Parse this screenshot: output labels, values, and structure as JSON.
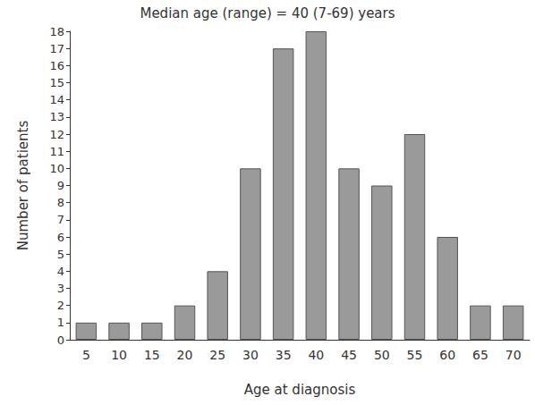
{
  "chart_data": {
    "type": "bar",
    "title": "Median age (range) = 40 (7-69) years",
    "x_label": "Age at diagnosis",
    "y_label": "Number of patients",
    "categories": [
      "5",
      "10",
      "15",
      "20",
      "25",
      "30",
      "35",
      "40",
      "45",
      "50",
      "55",
      "60",
      "65",
      "70"
    ],
    "values": [
      1,
      1,
      1,
      2,
      4,
      10,
      17,
      18,
      10,
      9,
      12,
      6,
      2,
      2
    ],
    "color": "#9a9a9a",
    "ylim": [
      0,
      18
    ],
    "yticks": [
      0,
      1,
      2,
      3,
      4,
      5,
      6,
      7,
      8,
      9,
      10,
      11,
      12,
      13,
      14,
      15,
      16,
      17,
      18
    ],
    "grid": false
  }
}
